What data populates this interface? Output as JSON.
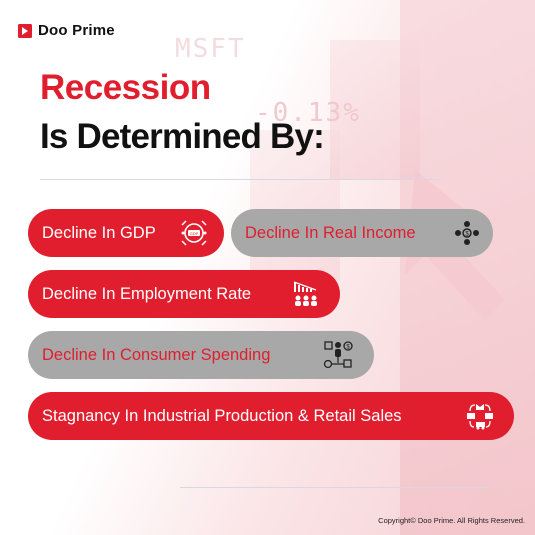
{
  "brand": {
    "name": "Doo Prime"
  },
  "background": {
    "ticker": "MSFT",
    "change": "-0.13%"
  },
  "title": {
    "line1": "Recession",
    "line2": "Is Determined By:"
  },
  "factors": [
    {
      "label": "Decline In GDP",
      "style": "red",
      "icon": "gdp-icon"
    },
    {
      "label": "Decline In Real Income",
      "style": "grey",
      "icon": "income-people-icon"
    },
    {
      "label": "Decline In Employment Rate",
      "style": "red",
      "icon": "employment-decline-icon"
    },
    {
      "label": "Decline In Consumer Spending",
      "style": "grey",
      "icon": "consumer-spending-icon"
    },
    {
      "label": "Stagnancy In Industrial Production & Retail Sales",
      "style": "red",
      "icon": "supply-chain-icon"
    }
  ],
  "footer": {
    "copyright": "Copyright© Doo Prime. All Rights Reserved."
  },
  "colors": {
    "accent": "#e01e2e",
    "grey_pill": "#a8a8a8",
    "text_dark": "#111111"
  }
}
